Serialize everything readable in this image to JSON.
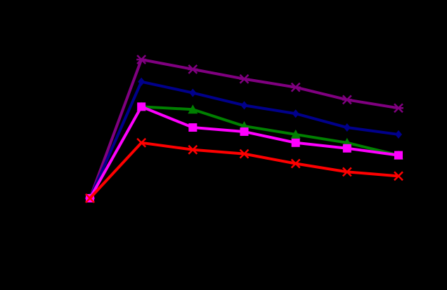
{
  "background_color": "#000000",
  "chart_data": {
    "type": "line",
    "title": "",
    "xlabel": "",
    "ylabel": "",
    "x": [
      0,
      1,
      2,
      3,
      4,
      5,
      6
    ],
    "xlim": [
      0,
      6
    ],
    "ylim": [
      0,
      1
    ],
    "grid": false,
    "legend": "none",
    "series": [
      {
        "color": "#800080",
        "marker": "asterisk",
        "values": [
          0.0,
          1.0,
          0.93,
          0.86,
          0.8,
          0.71,
          0.65
        ]
      },
      {
        "color": "#00008B",
        "marker": "diamond",
        "values": [
          0.0,
          0.84,
          0.76,
          0.67,
          0.61,
          0.51,
          0.46
        ]
      },
      {
        "color": "#008000",
        "marker": "triangle",
        "values": [
          0.0,
          0.66,
          0.64,
          0.52,
          0.46,
          0.4,
          0.31
        ]
      },
      {
        "color": "#FF00FF",
        "marker": "square",
        "values": [
          0.0,
          0.66,
          0.51,
          0.48,
          0.4,
          0.36,
          0.31
        ]
      },
      {
        "color": "#FF0000",
        "marker": "x",
        "values": [
          0.0,
          0.4,
          0.35,
          0.32,
          0.25,
          0.19,
          0.16
        ]
      }
    ]
  }
}
